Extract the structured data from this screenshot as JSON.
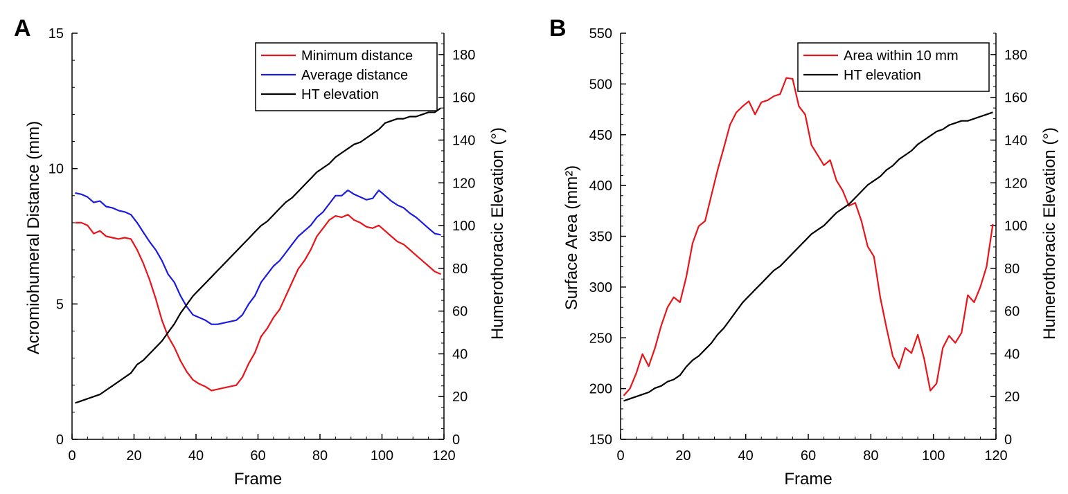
{
  "chart_data": [
    {
      "panel_label": "A",
      "type": "line",
      "xlabel": "Frame",
      "ylabel_left": "Acromiohumeral Distance (mm)",
      "ylabel_right": "Humerothoracic Elevation (°)",
      "xlim": [
        0,
        120
      ],
      "ylim_left": [
        0,
        15
      ],
      "ylim_right": [
        0,
        190
      ],
      "xticks": [
        0,
        20,
        40,
        60,
        80,
        100,
        120
      ],
      "yticks_left": [
        0,
        5,
        10,
        15
      ],
      "yticks_right": [
        0,
        20,
        40,
        60,
        80,
        100,
        120,
        140,
        160,
        180
      ],
      "legend_position": "top-right",
      "series": [
        {
          "name": "Minimum distance",
          "axis": "left",
          "color": "#e8141a",
          "x": [
            1,
            3,
            5,
            7,
            9,
            11,
            13,
            15,
            17,
            19,
            21,
            23,
            25,
            27,
            29,
            31,
            33,
            35,
            37,
            39,
            41,
            43,
            45,
            47,
            49,
            51,
            53,
            55,
            57,
            59,
            61,
            63,
            65,
            67,
            69,
            71,
            73,
            75,
            77,
            79,
            81,
            83,
            85,
            87,
            89,
            91,
            93,
            95,
            97,
            99,
            101,
            103,
            105,
            107,
            109,
            111,
            113,
            115,
            117,
            119
          ],
          "y": [
            8.0,
            8.0,
            7.9,
            7.6,
            7.7,
            7.5,
            7.45,
            7.4,
            7.45,
            7.4,
            7.0,
            6.5,
            5.9,
            5.2,
            4.4,
            3.8,
            3.4,
            2.9,
            2.5,
            2.2,
            2.05,
            1.95,
            1.8,
            1.85,
            1.9,
            1.95,
            2.0,
            2.3,
            2.8,
            3.2,
            3.8,
            4.1,
            4.5,
            4.8,
            5.3,
            5.8,
            6.3,
            6.6,
            7.0,
            7.5,
            7.8,
            8.1,
            8.25,
            8.2,
            8.3,
            8.1,
            8.0,
            7.85,
            7.8,
            7.9,
            7.7,
            7.5,
            7.3,
            7.2,
            7.0,
            6.8,
            6.6,
            6.4,
            6.2,
            6.1
          ]
        },
        {
          "name": "Average distance",
          "axis": "left",
          "color": "#1a1ae0",
          "x": [
            1,
            3,
            5,
            7,
            9,
            11,
            13,
            15,
            17,
            19,
            21,
            23,
            25,
            27,
            29,
            31,
            33,
            35,
            37,
            39,
            41,
            43,
            45,
            47,
            49,
            51,
            53,
            55,
            57,
            59,
            61,
            63,
            65,
            67,
            69,
            71,
            73,
            75,
            77,
            79,
            81,
            83,
            85,
            87,
            89,
            91,
            93,
            95,
            97,
            99,
            101,
            103,
            105,
            107,
            109,
            111,
            113,
            115,
            117,
            119
          ],
          "y": [
            9.1,
            9.05,
            8.95,
            8.75,
            8.8,
            8.6,
            8.55,
            8.45,
            8.4,
            8.3,
            8.0,
            7.65,
            7.3,
            7.0,
            6.6,
            6.1,
            5.8,
            5.3,
            4.9,
            4.6,
            4.5,
            4.4,
            4.25,
            4.25,
            4.3,
            4.35,
            4.4,
            4.6,
            5.0,
            5.3,
            5.8,
            6.1,
            6.4,
            6.6,
            6.9,
            7.2,
            7.5,
            7.7,
            7.9,
            8.2,
            8.4,
            8.7,
            9.0,
            9.0,
            9.2,
            9.05,
            8.95,
            8.85,
            8.9,
            9.2,
            9.0,
            8.8,
            8.65,
            8.55,
            8.35,
            8.2,
            8.0,
            7.8,
            7.6,
            7.55
          ]
        },
        {
          "name": "HT elevation",
          "axis": "right",
          "color": "#000000",
          "x": [
            1,
            3,
            5,
            7,
            9,
            11,
            13,
            15,
            17,
            19,
            21,
            23,
            25,
            27,
            29,
            31,
            33,
            35,
            37,
            39,
            41,
            43,
            45,
            47,
            49,
            51,
            53,
            55,
            57,
            59,
            61,
            63,
            65,
            67,
            69,
            71,
            73,
            75,
            77,
            79,
            81,
            83,
            85,
            87,
            89,
            91,
            93,
            95,
            97,
            99,
            101,
            103,
            105,
            107,
            109,
            111,
            113,
            115,
            117,
            119
          ],
          "y": [
            17,
            18,
            19,
            20,
            21,
            23,
            25,
            27,
            29,
            31,
            35,
            37,
            40,
            43,
            46,
            50,
            54,
            59,
            63,
            67,
            70,
            73,
            76,
            79,
            82,
            85,
            88,
            91,
            94,
            97,
            100,
            102,
            105,
            108,
            111,
            113,
            116,
            119,
            122,
            125,
            127,
            129,
            132,
            134,
            136,
            138,
            139,
            141,
            143,
            145,
            148,
            149,
            150,
            150,
            151,
            151,
            152,
            153,
            153,
            155
          ]
        }
      ]
    },
    {
      "panel_label": "B",
      "type": "line",
      "xlabel": "Frame",
      "ylabel_left": "Surface Area (mm²)",
      "ylabel_right": "Humerothoracic Elevation (°)",
      "xlim": [
        0,
        120
      ],
      "ylim_left": [
        150,
        550
      ],
      "ylim_right": [
        0,
        190
      ],
      "xticks": [
        0,
        20,
        40,
        60,
        80,
        100,
        120
      ],
      "yticks_left": [
        150,
        200,
        250,
        300,
        350,
        400,
        450,
        500,
        550
      ],
      "yticks_right": [
        0,
        20,
        40,
        60,
        80,
        100,
        120,
        140,
        160,
        180
      ],
      "legend_position": "top-right",
      "series": [
        {
          "name": "Area within 10 mm",
          "axis": "left",
          "color": "#e8141a",
          "x": [
            1,
            3,
            5,
            7,
            9,
            11,
            13,
            15,
            17,
            19,
            21,
            23,
            25,
            27,
            29,
            31,
            33,
            35,
            37,
            39,
            41,
            43,
            45,
            47,
            49,
            51,
            53,
            55,
            57,
            59,
            61,
            63,
            65,
            67,
            69,
            71,
            73,
            75,
            77,
            79,
            81,
            83,
            85,
            87,
            89,
            91,
            93,
            95,
            97,
            99,
            101,
            103,
            105,
            107,
            109,
            111,
            113,
            115,
            117,
            119
          ],
          "y": [
            193,
            200,
            215,
            234,
            222,
            240,
            262,
            280,
            290,
            285,
            310,
            343,
            360,
            365,
            390,
            415,
            437,
            460,
            472,
            478,
            483,
            470,
            482,
            484,
            488,
            490,
            506,
            505,
            478,
            470,
            440,
            430,
            420,
            425,
            405,
            395,
            380,
            383,
            365,
            340,
            330,
            290,
            260,
            232,
            220,
            240,
            235,
            253,
            230,
            198,
            205,
            240,
            252,
            245,
            255,
            292,
            285,
            300,
            320,
            362
          ]
        },
        {
          "name": "HT elevation",
          "axis": "right",
          "color": "#000000",
          "x": [
            1,
            3,
            5,
            7,
            9,
            11,
            13,
            15,
            17,
            19,
            21,
            23,
            25,
            27,
            29,
            31,
            33,
            35,
            37,
            39,
            41,
            43,
            45,
            47,
            49,
            51,
            53,
            55,
            57,
            59,
            61,
            63,
            65,
            67,
            69,
            71,
            73,
            75,
            77,
            79,
            81,
            83,
            85,
            87,
            89,
            91,
            93,
            95,
            97,
            99,
            101,
            103,
            105,
            107,
            109,
            111,
            113,
            115,
            117,
            119
          ],
          "y": [
            18,
            19,
            20,
            21,
            22,
            24,
            25,
            27,
            28,
            30,
            34,
            37,
            39,
            42,
            45,
            49,
            52,
            56,
            60,
            64,
            67,
            70,
            73,
            76,
            79,
            81,
            84,
            87,
            90,
            93,
            96,
            98,
            100,
            103,
            106,
            108,
            110,
            113,
            116,
            119,
            121,
            123,
            126,
            128,
            131,
            133,
            135,
            138,
            140,
            142,
            144,
            145,
            147,
            148,
            149,
            149,
            150,
            151,
            152,
            153
          ]
        }
      ]
    }
  ]
}
